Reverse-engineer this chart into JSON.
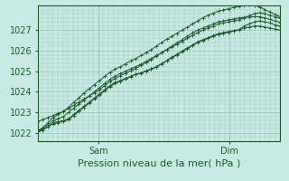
{
  "title": "",
  "xlabel": "Pression niveau de la mer( hPa )",
  "ylabel": "",
  "bg_color": "#c8eae4",
  "plot_bg_color": "#c8eae4",
  "grid_color": "#a0c4be",
  "line_color": "#1a5c28",
  "tick_label_color": "#1a5c28",
  "xlabel_color": "#1a5c28",
  "ylim": [
    1021.6,
    1028.2
  ],
  "xlim": [
    0,
    48
  ],
  "yticks": [
    1022,
    1023,
    1024,
    1025,
    1026,
    1027
  ],
  "xtick_positions": [
    12,
    38
  ],
  "xtick_labels": [
    "Sam",
    "Dim"
  ],
  "vline_positions": [
    12,
    38
  ],
  "series": [
    [
      1022.1,
      1022.15,
      1022.3,
      1022.5,
      1022.55,
      1022.6,
      1022.7,
      1022.9,
      1023.1,
      1023.3,
      1023.5,
      1023.7,
      1023.9,
      1024.1,
      1024.3,
      1024.45,
      1024.55,
      1024.65,
      1024.75,
      1024.85,
      1024.9,
      1025.0,
      1025.1,
      1025.2,
      1025.35,
      1025.5,
      1025.65,
      1025.8,
      1025.95,
      1026.1,
      1026.25,
      1026.4,
      1026.5,
      1026.6,
      1026.7,
      1026.8,
      1026.85,
      1026.9,
      1026.95,
      1027.0,
      1027.1,
      1027.15,
      1027.2,
      1027.2,
      1027.15,
      1027.1,
      1027.05,
      1027.0
    ],
    [
      1022.1,
      1022.15,
      1022.3,
      1022.45,
      1022.5,
      1022.55,
      1022.65,
      1022.85,
      1023.05,
      1023.25,
      1023.45,
      1023.65,
      1023.85,
      1024.05,
      1024.25,
      1024.4,
      1024.5,
      1024.62,
      1024.74,
      1024.86,
      1024.92,
      1025.02,
      1025.12,
      1025.22,
      1025.37,
      1025.52,
      1025.68,
      1025.83,
      1025.98,
      1026.13,
      1026.28,
      1026.43,
      1026.53,
      1026.63,
      1026.73,
      1026.83,
      1026.88,
      1026.93,
      1026.98,
      1027.03,
      1027.2,
      1027.3,
      1027.4,
      1027.45,
      1027.4,
      1027.35,
      1027.25,
      1027.2
    ],
    [
      1022.1,
      1022.2,
      1022.4,
      1022.6,
      1022.7,
      1022.8,
      1023.0,
      1023.2,
      1023.4,
      1023.6,
      1023.8,
      1024.0,
      1024.2,
      1024.4,
      1024.6,
      1024.75,
      1024.88,
      1025.0,
      1025.12,
      1025.22,
      1025.35,
      1025.48,
      1025.62,
      1025.76,
      1025.9,
      1026.04,
      1026.18,
      1026.32,
      1026.46,
      1026.6,
      1026.74,
      1026.88,
      1027.0,
      1027.1,
      1027.2,
      1027.3,
      1027.35,
      1027.4,
      1027.45,
      1027.5,
      1027.6,
      1027.7,
      1027.8,
      1027.85,
      1027.8,
      1027.72,
      1027.65,
      1027.6
    ],
    [
      1022.1,
      1022.25,
      1022.5,
      1022.75,
      1022.9,
      1023.05,
      1023.25,
      1023.5,
      1023.7,
      1023.95,
      1024.15,
      1024.35,
      1024.55,
      1024.75,
      1024.95,
      1025.1,
      1025.22,
      1025.36,
      1025.5,
      1025.62,
      1025.76,
      1025.9,
      1026.05,
      1026.22,
      1026.4,
      1026.56,
      1026.7,
      1026.85,
      1027.0,
      1027.15,
      1027.3,
      1027.45,
      1027.6,
      1027.72,
      1027.82,
      1027.92,
      1027.98,
      1028.04,
      1028.1,
      1028.15,
      1028.2,
      1028.25,
      1028.2,
      1028.12,
      1028.0,
      1027.88,
      1027.76,
      1027.65
    ],
    [
      1022.55,
      1022.65,
      1022.75,
      1022.85,
      1022.95,
      1023.05,
      1023.2,
      1023.35,
      1023.5,
      1023.65,
      1023.8,
      1023.95,
      1024.1,
      1024.3,
      1024.5,
      1024.65,
      1024.78,
      1024.9,
      1025.02,
      1025.14,
      1025.28,
      1025.42,
      1025.58,
      1025.74,
      1025.9,
      1026.06,
      1026.22,
      1026.38,
      1026.54,
      1026.7,
      1026.86,
      1027.0,
      1027.1,
      1027.2,
      1027.3,
      1027.4,
      1027.45,
      1027.5,
      1027.55,
      1027.6,
      1027.62,
      1027.64,
      1027.66,
      1027.65,
      1027.6,
      1027.52,
      1027.44,
      1027.38
    ]
  ]
}
